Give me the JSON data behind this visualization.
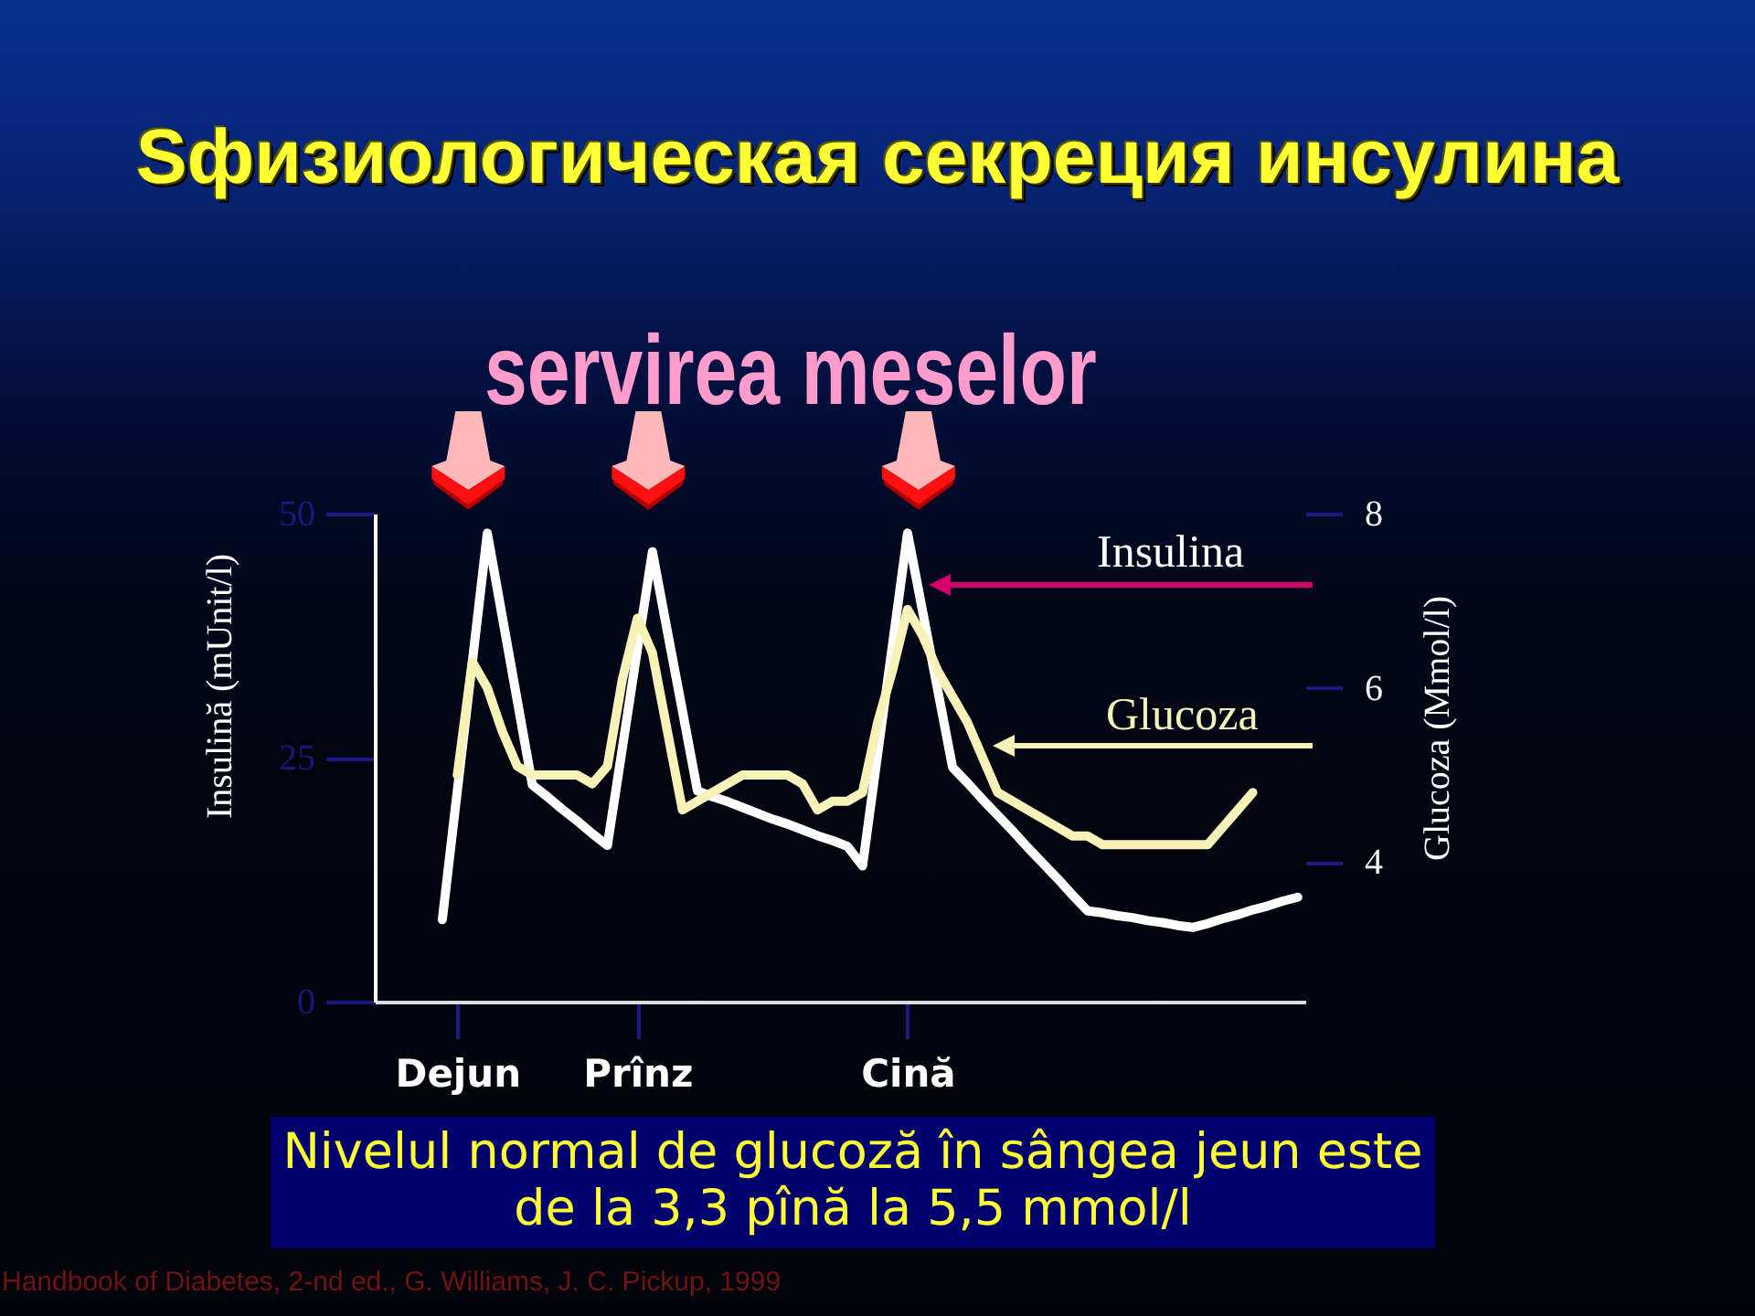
{
  "chart_data": {
    "type": "line",
    "title": "Sфизиологическая секреция инсулина",
    "ylabel": "Insulină (mUnit/l)",
    "y2label": "Glucoza (Mmol/l)",
    "categories": [
      null,
      null,
      null,
      null,
      null,
      "Dejun",
      null,
      null,
      null,
      null,
      null,
      null,
      null,
      null,
      null,
      null,
      null,
      "Prînz",
      null,
      null,
      null,
      null,
      null,
      null,
      null,
      null,
      null,
      null,
      null,
      null,
      null,
      null,
      null,
      null,
      null,
      "Cină",
      null,
      null,
      null,
      null,
      null,
      null,
      null,
      null,
      null,
      null,
      null,
      null,
      null,
      null,
      null,
      null,
      null,
      null,
      null,
      null,
      null,
      null,
      null,
      null,
      null,
      null
    ],
    "ylim": [
      0,
      50
    ],
    "yticks": [
      0,
      25,
      50
    ],
    "y2lim": [
      2.4,
      8
    ],
    "y2ticks": [
      4,
      6,
      8
    ],
    "series": [
      {
        "name": "Insulina",
        "color": "#ffffff",
        "values": [
          null,
          null,
          null,
          null,
          8.4,
          21.6,
          34.8,
          48.0,
          39.4,
          30.8,
          22.2,
          21.0,
          19.7,
          18.5,
          17.2,
          16.0,
          26.0,
          36.1,
          46.1,
          37.9,
          29.8,
          21.6,
          21.0,
          20.5,
          19.9,
          19.3,
          18.7,
          18.2,
          17.6,
          17.0,
          16.5,
          15.9,
          13.9,
          25.3,
          36.6,
          48.0,
          40.0,
          32.0,
          24.0,
          22.4,
          20.7,
          19.1,
          17.5,
          15.8,
          14.2,
          12.6,
          10.9,
          9.3,
          9.1,
          8.8,
          8.6,
          8.3,
          8.1,
          7.8,
          7.6,
          8.0,
          8.5,
          8.9,
          9.4,
          9.8,
          10.3,
          10.7
        ]
      },
      {
        "name": "Glucoza",
        "color": "#f7f2b8",
        "axis": "y2",
        "values": [
          null,
          null,
          null,
          null,
          null,
          5.0,
          6.3,
          6.0,
          5.5,
          5.1,
          5.0,
          5.0,
          5.0,
          5.0,
          4.9,
          5.1,
          6.1,
          6.8,
          6.4,
          5.5,
          4.6,
          4.7,
          4.8,
          4.9,
          5.0,
          5.0,
          5.0,
          5.0,
          4.9,
          4.6,
          4.7,
          4.7,
          4.8,
          5.6,
          6.2,
          6.9,
          6.6,
          6.2,
          5.9,
          5.6,
          5.2,
          4.8,
          4.7,
          4.6,
          4.5,
          4.4,
          4.3,
          4.3,
          4.2,
          4.2,
          4.2,
          4.2,
          4.2,
          4.2,
          4.2,
          4.2,
          4.4,
          4.6,
          4.8,
          null,
          null,
          null
        ]
      }
    ],
    "annotations": [
      "servirea meselor",
      "Nivelul normal de glucoză în sângea jeun este de la 3,3 pînă la 5,5 mmol/l",
      "Handbook of Diabetes, 2-nd ed., G. Williams, J. C. Pickup, 1999"
    ]
  }
}
